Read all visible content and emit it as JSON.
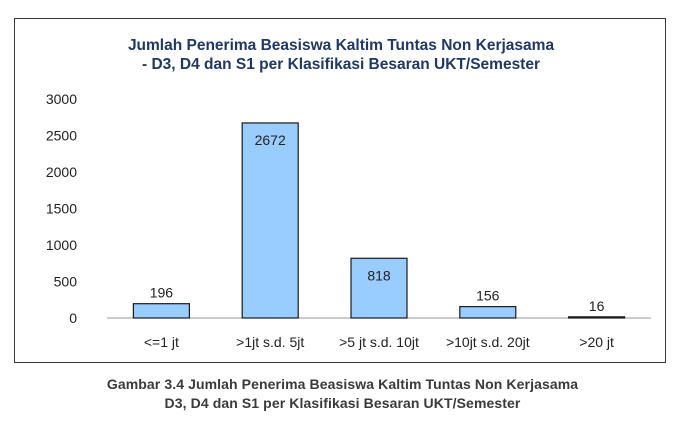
{
  "chart_data": {
    "type": "bar",
    "title_lines": [
      "Jumlah Penerima Beasiswa Kaltim Tuntas Non Kerjasama",
      "- D3, D4 dan S1 per Klasifikasi Besaran UKT/Semester"
    ],
    "categories": [
      "<=1 jt",
      ">1jt s.d. 5jt",
      ">5 jt s.d. 10jt",
      ">10jt s.d. 20jt",
      ">20 jt"
    ],
    "values": [
      196,
      2672,
      818,
      156,
      16
    ],
    "value_labels": [
      "196",
      "2672",
      "818",
      "156",
      "16"
    ],
    "yticks": [
      "0",
      "500",
      "1000",
      "1500",
      "2000",
      "2500",
      "3000"
    ],
    "ylim": [
      0,
      3000
    ],
    "grid": false,
    "legend": "none",
    "bar_color": "#99ccff",
    "bar_border_color": "#1a1a1a"
  },
  "caption": {
    "line1": "Gambar 3.4 Jumlah Penerima Beasiswa Kaltim Tuntas Non Kerjasama",
    "line2": "D3, D4 dan S1 per Klasifikasi Besaran UKT/Semester"
  }
}
